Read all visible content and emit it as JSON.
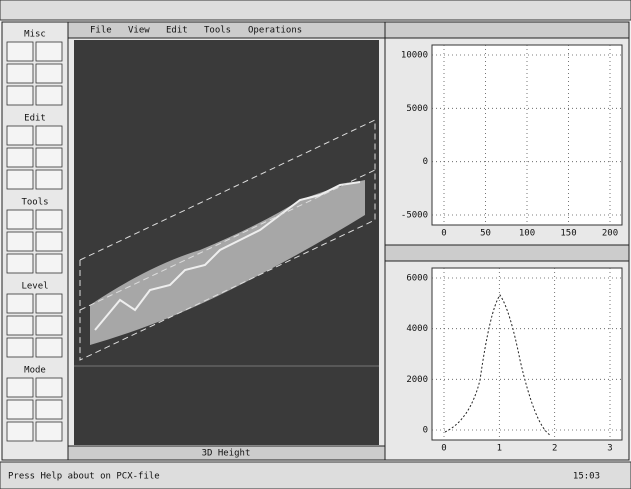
{
  "menubar": {
    "items": [
      "File",
      "View",
      "Edit",
      "Tools",
      "Operations"
    ]
  },
  "palette": {
    "groups": [
      "Misc",
      "Edit",
      "Tools",
      "Level",
      "Mode"
    ]
  },
  "image_window": {
    "bottom_label": "3D Height"
  },
  "plot_top": {
    "yticks": [
      "10000",
      "5000",
      "0",
      "-5000"
    ],
    "xticks": [
      "0",
      "50",
      "100",
      "150",
      "200"
    ]
  },
  "plot_bottom": {
    "yticks": [
      "6000",
      "4000",
      "2000",
      "0"
    ],
    "xticks": [
      "0",
      "1",
      "2",
      "3"
    ]
  },
  "status": {
    "text": "Press Help about on PCX-file",
    "time": "15:03"
  }
}
